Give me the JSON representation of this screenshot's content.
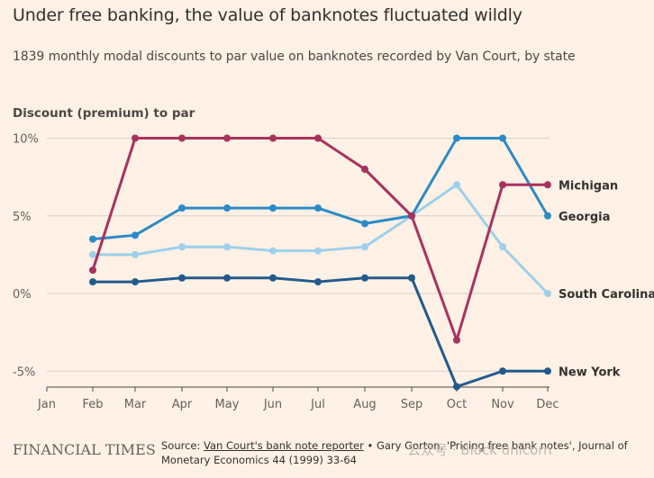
{
  "header": {
    "title": "Under free banking, the value of banknotes fluctuated wildly",
    "subtitle": "1839 monthly modal discounts to par value on banknotes recorded by Van Court, by state"
  },
  "footer": {
    "logo": "FINANCIAL TIMES",
    "source_prefix": "Source: ",
    "source_link": "Van Court's bank note reporter",
    "source_rest": " • Gary Gorton, 'Pricing free bank notes', Journal of Monetary Economics 44 (1999) 33-64",
    "watermark": "公众号 · Block unicorn"
  },
  "chart_data": {
    "type": "line",
    "title": "Under free banking, the value of banknotes fluctuated wildly",
    "subtitle": "1839 monthly modal discounts to par value on banknotes recorded by Van Court, by state",
    "ylabel": "Discount (premium) to par",
    "xlabel": "",
    "categories": [
      "Jan",
      "Feb",
      "Mar",
      "Apr",
      "May",
      "Jun",
      "Jul",
      "Aug",
      "Sep",
      "Oct",
      "Nov",
      "Dec"
    ],
    "ylim": [
      -6,
      10
    ],
    "yticks": [
      10,
      5,
      0,
      -5
    ],
    "ytick_labels": [
      "10%",
      "5%",
      "0%",
      "-5%"
    ],
    "grid": true,
    "series": [
      {
        "name": "Michigan",
        "color": "#a8325e",
        "values": [
          null,
          1.5,
          10,
          10,
          10,
          10,
          10,
          8,
          5,
          -3,
          7,
          7
        ]
      },
      {
        "name": "Georgia",
        "color": "#2c8ac6",
        "values": [
          null,
          3.5,
          3.75,
          5.5,
          5.5,
          5.5,
          5.5,
          4.5,
          5,
          10,
          10,
          5
        ]
      },
      {
        "name": "South Carolina",
        "color": "#9ed0ea",
        "values": [
          null,
          2.5,
          2.5,
          3,
          3,
          2.75,
          2.75,
          3,
          5,
          7,
          3,
          0
        ]
      },
      {
        "name": "New York",
        "color": "#235a8c",
        "values": [
          null,
          0.75,
          0.75,
          1,
          1,
          1,
          0.75,
          1,
          1,
          -6,
          -5,
          -5
        ]
      }
    ]
  }
}
